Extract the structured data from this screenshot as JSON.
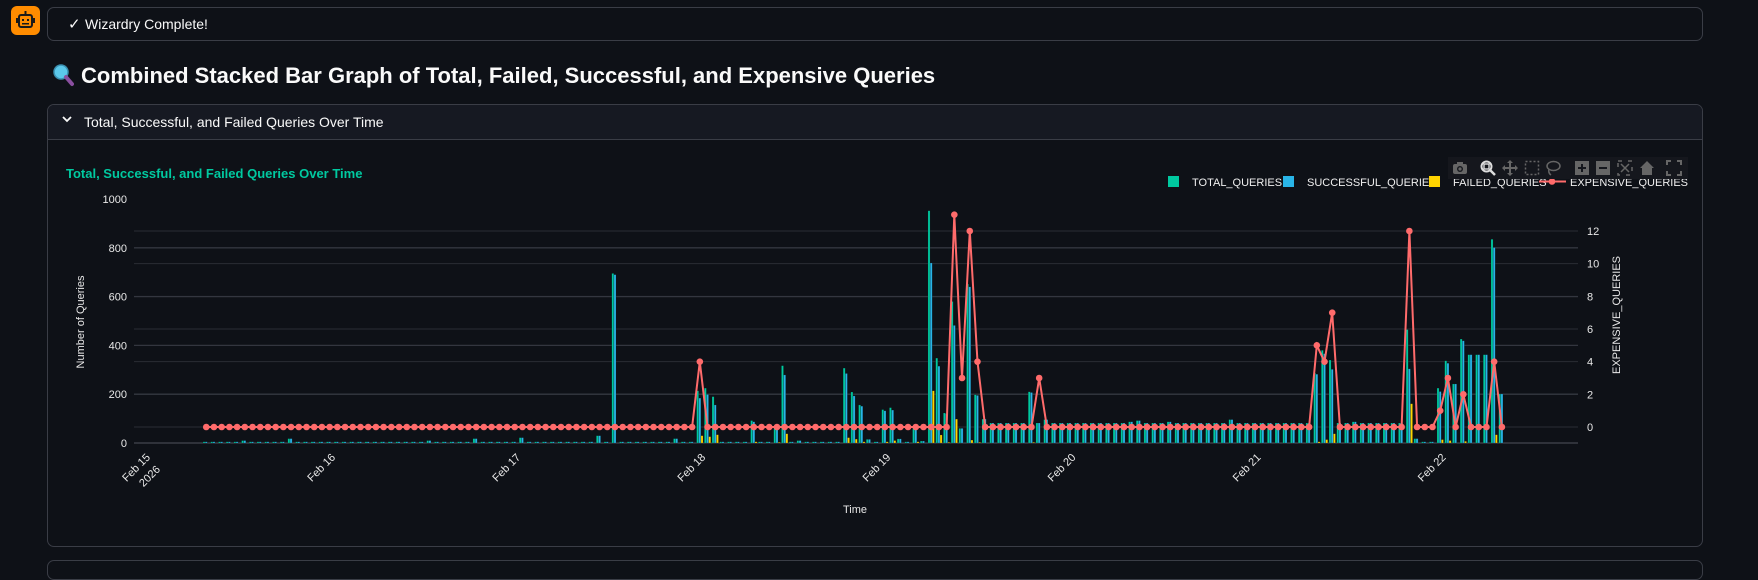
{
  "status": {
    "icon": "check-icon",
    "text": "Wizardry Complete!"
  },
  "avatar": {
    "icon": "robot-icon",
    "color": "#ff8c00"
  },
  "heading": {
    "icon": "magnifier-icon",
    "text": "Combined Stacked Bar Graph of Total, Failed, Successful, and Expensive Queries"
  },
  "expander": {
    "title": "Total, Successful, and Failed Queries Over Time",
    "expanded": true
  },
  "toolbar": [
    "camera-icon",
    "zoom-icon",
    "pan-icon",
    "box-select-icon",
    "lasso-icon",
    "zoom-in-icon",
    "zoom-out-icon",
    "autoscale-icon",
    "home-icon",
    "fullscreen-icon"
  ],
  "chart_data": {
    "type": "bar",
    "title": "Total, Successful, and Failed Queries Over Time",
    "xlabel": "Time",
    "ylabel": "Number of Queries",
    "y2label": "EXPENSIVE_QUERIES",
    "xlim": [
      "2026-02-14 23:38",
      "2026-02-22 18:52"
    ],
    "ylim": [
      0,
      1000
    ],
    "y2lim": [
      -0.98,
      13.96
    ],
    "y_ticks": [
      "0",
      "200",
      "400",
      "600",
      "800",
      "1000"
    ],
    "y2_ticks": [
      "0",
      "2",
      "4",
      "6",
      "8",
      "10",
      "12"
    ],
    "x_ticks": [
      {
        "date": "2026-02-15",
        "label": "Feb 15",
        "sub": "2026"
      },
      {
        "date": "2026-02-16",
        "label": "Feb 16"
      },
      {
        "date": "2026-02-17",
        "label": "Feb 17"
      },
      {
        "date": "2026-02-18",
        "label": "Feb 18"
      },
      {
        "date": "2026-02-19",
        "label": "Feb 19"
      },
      {
        "date": "2026-02-20",
        "label": "Feb 20"
      },
      {
        "date": "2026-02-21",
        "label": "Feb 21"
      },
      {
        "date": "2026-02-22",
        "label": "Feb 22"
      }
    ],
    "grid": true,
    "legend_position": "top-right",
    "colors": {
      "TOTAL_QUERIES": "#00c9a0",
      "SUCCESSFUL_QUERIES": "#29b5e8",
      "FAILED_QUERIES": "#ffd400",
      "EXPENSIVE_QUERIES": "#ff6b6b",
      "title": "#00c9a0"
    },
    "x": [
      "2026-02-15 09:00",
      "2026-02-15 10:00",
      "2026-02-15 11:00",
      "2026-02-15 12:00",
      "2026-02-15 13:00",
      "2026-02-15 14:00",
      "2026-02-15 15:00",
      "2026-02-15 16:00",
      "2026-02-15 17:00",
      "2026-02-15 18:00",
      "2026-02-15 19:00",
      "2026-02-15 20:00",
      "2026-02-15 21:00",
      "2026-02-15 22:00",
      "2026-02-15 23:00",
      "2026-02-16 00:00",
      "2026-02-16 01:00",
      "2026-02-16 02:00",
      "2026-02-16 03:00",
      "2026-02-16 04:00",
      "2026-02-16 05:00",
      "2026-02-16 06:00",
      "2026-02-16 07:00",
      "2026-02-16 08:00",
      "2026-02-16 09:00",
      "2026-02-16 10:00",
      "2026-02-16 11:00",
      "2026-02-16 12:00",
      "2026-02-16 13:00",
      "2026-02-16 14:00",
      "2026-02-16 15:00",
      "2026-02-16 16:00",
      "2026-02-16 17:00",
      "2026-02-16 18:00",
      "2026-02-16 19:00",
      "2026-02-16 20:00",
      "2026-02-16 21:00",
      "2026-02-16 22:00",
      "2026-02-16 23:00",
      "2026-02-17 00:00",
      "2026-02-17 01:00",
      "2026-02-17 02:00",
      "2026-02-17 03:00",
      "2026-02-17 04:00",
      "2026-02-17 05:00",
      "2026-02-17 06:00",
      "2026-02-17 07:00",
      "2026-02-17 08:00",
      "2026-02-17 09:00",
      "2026-02-17 10:00",
      "2026-02-17 11:00",
      "2026-02-17 12:00",
      "2026-02-17 13:00",
      "2026-02-17 14:00",
      "2026-02-17 15:00",
      "2026-02-17 16:00",
      "2026-02-17 17:00",
      "2026-02-17 18:00",
      "2026-02-17 19:00",
      "2026-02-17 20:00",
      "2026-02-17 21:00",
      "2026-02-17 22:00",
      "2026-02-17 23:00",
      "2026-02-18 00:00",
      "2026-02-18 01:00",
      "2026-02-18 02:00",
      "2026-02-18 03:00",
      "2026-02-18 04:00",
      "2026-02-18 05:00",
      "2026-02-18 06:00",
      "2026-02-18 07:00",
      "2026-02-18 08:00",
      "2026-02-18 09:00",
      "2026-02-18 10:00",
      "2026-02-18 11:00",
      "2026-02-18 12:00",
      "2026-02-18 13:00",
      "2026-02-18 14:00",
      "2026-02-18 15:00",
      "2026-02-18 16:00",
      "2026-02-18 17:00",
      "2026-02-18 18:00",
      "2026-02-18 19:00",
      "2026-02-18 20:00",
      "2026-02-18 21:00",
      "2026-02-18 22:00",
      "2026-02-18 23:00",
      "2026-02-19 00:00",
      "2026-02-19 01:00",
      "2026-02-19 02:00",
      "2026-02-19 03:00",
      "2026-02-19 04:00",
      "2026-02-19 05:00",
      "2026-02-19 06:00",
      "2026-02-19 07:00",
      "2026-02-19 08:00",
      "2026-02-19 09:00",
      "2026-02-19 10:00",
      "2026-02-19 11:00",
      "2026-02-19 12:00",
      "2026-02-19 13:00",
      "2026-02-19 14:00",
      "2026-02-19 15:00",
      "2026-02-19 16:00",
      "2026-02-19 17:00",
      "2026-02-19 18:00",
      "2026-02-19 19:00",
      "2026-02-19 20:00",
      "2026-02-19 21:00",
      "2026-02-19 22:00",
      "2026-02-19 23:00",
      "2026-02-20 00:00",
      "2026-02-20 01:00",
      "2026-02-20 02:00",
      "2026-02-20 03:00",
      "2026-02-20 04:00",
      "2026-02-20 05:00",
      "2026-02-20 06:00",
      "2026-02-20 07:00",
      "2026-02-20 08:00",
      "2026-02-20 09:00",
      "2026-02-20 10:00",
      "2026-02-20 11:00",
      "2026-02-20 12:00",
      "2026-02-20 13:00",
      "2026-02-20 14:00",
      "2026-02-20 15:00",
      "2026-02-20 16:00",
      "2026-02-20 17:00",
      "2026-02-20 18:00",
      "2026-02-20 19:00",
      "2026-02-20 20:00",
      "2026-02-20 21:00",
      "2026-02-20 22:00",
      "2026-02-20 23:00",
      "2026-02-21 00:00",
      "2026-02-21 01:00",
      "2026-02-21 02:00",
      "2026-02-21 03:00",
      "2026-02-21 04:00",
      "2026-02-21 05:00",
      "2026-02-21 06:00",
      "2026-02-21 07:00",
      "2026-02-21 08:00",
      "2026-02-21 09:00",
      "2026-02-21 10:00",
      "2026-02-21 11:00",
      "2026-02-21 12:00",
      "2026-02-21 13:00",
      "2026-02-21 14:00",
      "2026-02-21 15:00",
      "2026-02-21 16:00",
      "2026-02-21 17:00",
      "2026-02-21 18:00",
      "2026-02-21 19:00",
      "2026-02-21 20:00",
      "2026-02-21 21:00",
      "2026-02-21 22:00",
      "2026-02-21 23:00",
      "2026-02-22 00:00",
      "2026-02-22 01:00",
      "2026-02-22 02:00",
      "2026-02-22 03:00",
      "2026-02-22 04:00",
      "2026-02-22 05:00",
      "2026-02-22 06:00",
      "2026-02-22 07:00",
      "2026-02-22 08:00",
      "2026-02-22 09:00"
    ],
    "series": [
      {
        "name": "TOTAL_QUERIES",
        "type": "bar",
        "axis": "y",
        "values": [
          5,
          5,
          5,
          5,
          5,
          10,
          5,
          5,
          5,
          5,
          5,
          18,
          5,
          5,
          5,
          5,
          5,
          5,
          5,
          5,
          5,
          5,
          5,
          5,
          5,
          5,
          5,
          5,
          5,
          10,
          5,
          5,
          5,
          5,
          5,
          18,
          5,
          5,
          5,
          5,
          5,
          22,
          5,
          5,
          5,
          5,
          5,
          5,
          5,
          5,
          5,
          30,
          5,
          695,
          5,
          5,
          5,
          5,
          5,
          5,
          5,
          18,
          5,
          5,
          214,
          225,
          190,
          5,
          5,
          5,
          5,
          92,
          5,
          5,
          61,
          317,
          5,
          10,
          5,
          5,
          5,
          5,
          5,
          307,
          209,
          156,
          15,
          5,
          137,
          145,
          17,
          5,
          59,
          8,
          952,
          348,
          123,
          580,
          60,
          652,
          198,
          98,
          82,
          82,
          82,
          82,
          82,
          210,
          82,
          96,
          82,
          82,
          82,
          82,
          82,
          82,
          82,
          82,
          82,
          82,
          87,
          92,
          82,
          82,
          82,
          87,
          82,
          82,
          82,
          82,
          82,
          82,
          82,
          96,
          82,
          82,
          82,
          82,
          82,
          82,
          82,
          82,
          82,
          82,
          287,
          380,
          340,
          82,
          82,
          87,
          82,
          82,
          82,
          82,
          82,
          82,
          465,
          18,
          5,
          5,
          225,
          337,
          242,
          426,
          362,
          362,
          362,
          835,
          201
        ]
      },
      {
        "name": "SUCCESSFUL_QUERIES",
        "type": "bar",
        "axis": "y",
        "values": [
          5,
          5,
          5,
          5,
          5,
          10,
          5,
          5,
          5,
          5,
          5,
          18,
          5,
          5,
          5,
          5,
          5,
          5,
          5,
          5,
          5,
          5,
          5,
          5,
          5,
          5,
          5,
          5,
          5,
          10,
          5,
          5,
          5,
          5,
          5,
          18,
          5,
          5,
          5,
          5,
          5,
          22,
          5,
          5,
          5,
          5,
          5,
          5,
          5,
          5,
          5,
          30,
          5,
          690,
          5,
          5,
          5,
          5,
          5,
          5,
          5,
          18,
          5,
          5,
          184,
          199,
          156,
          5,
          5,
          5,
          5,
          87,
          5,
          5,
          58,
          279,
          5,
          10,
          5,
          5,
          5,
          5,
          5,
          285,
          193,
          151,
          15,
          5,
          132,
          135,
          17,
          5,
          54,
          8,
          738,
          315,
          120,
          482,
          60,
          640,
          195,
          98,
          82,
          82,
          82,
          82,
          82,
          207,
          82,
          96,
          82,
          82,
          82,
          82,
          82,
          82,
          82,
          82,
          82,
          82,
          87,
          92,
          82,
          82,
          82,
          87,
          82,
          82,
          82,
          82,
          82,
          82,
          82,
          96,
          82,
          82,
          82,
          82,
          82,
          82,
          82,
          82,
          82,
          82,
          282,
          366,
          302,
          82,
          82,
          87,
          82,
          82,
          82,
          82,
          82,
          82,
          304,
          18,
          5,
          5,
          211,
          327,
          242,
          419,
          362,
          362,
          362,
          801,
          201
        ]
      },
      {
        "name": "FAILED_QUERIES",
        "type": "bar",
        "axis": "y",
        "values": [
          0,
          0,
          0,
          0,
          0,
          0,
          0,
          0,
          0,
          0,
          0,
          0,
          0,
          0,
          0,
          0,
          0,
          0,
          0,
          0,
          0,
          0,
          0,
          0,
          0,
          0,
          0,
          0,
          0,
          0,
          0,
          0,
          0,
          0,
          0,
          0,
          0,
          0,
          0,
          0,
          0,
          0,
          0,
          0,
          0,
          0,
          0,
          0,
          0,
          0,
          0,
          0,
          0,
          0,
          0,
          0,
          0,
          0,
          0,
          0,
          0,
          0,
          0,
          0,
          30,
          26,
          34,
          0,
          0,
          0,
          0,
          5,
          0,
          0,
          3,
          38,
          0,
          0,
          0,
          0,
          0,
          0,
          0,
          22,
          16,
          5,
          0,
          0,
          5,
          10,
          0,
          0,
          5,
          0,
          214,
          33,
          3,
          98,
          0,
          12,
          3,
          0,
          0,
          0,
          0,
          0,
          0,
          3,
          0,
          0,
          0,
          0,
          0,
          0,
          0,
          0,
          0,
          0,
          0,
          0,
          0,
          0,
          0,
          0,
          0,
          0,
          0,
          0,
          0,
          0,
          0,
          0,
          0,
          0,
          0,
          0,
          0,
          0,
          0,
          0,
          0,
          0,
          0,
          0,
          5,
          14,
          38,
          0,
          0,
          0,
          0,
          0,
          0,
          0,
          0,
          0,
          161,
          0,
          0,
          0,
          14,
          10,
          0,
          7,
          0,
          0,
          0,
          34,
          0
        ]
      },
      {
        "name": "EXPENSIVE_QUERIES",
        "type": "line+markers",
        "axis": "y2",
        "values": [
          0,
          0,
          0,
          0,
          0,
          0,
          0,
          0,
          0,
          0,
          0,
          0,
          0,
          0,
          0,
          0,
          0,
          0,
          0,
          0,
          0,
          0,
          0,
          0,
          0,
          0,
          0,
          0,
          0,
          0,
          0,
          0,
          0,
          0,
          0,
          0,
          0,
          0,
          0,
          0,
          0,
          0,
          0,
          0,
          0,
          0,
          0,
          0,
          0,
          0,
          0,
          0,
          0,
          0,
          0,
          0,
          0,
          0,
          0,
          0,
          0,
          0,
          0,
          0,
          4,
          0,
          0,
          0,
          0,
          0,
          0,
          0,
          0,
          0,
          0,
          0,
          0,
          0,
          0,
          0,
          0,
          0,
          0,
          0,
          0,
          0,
          0,
          0,
          0,
          0,
          0,
          0,
          0,
          0,
          0,
          0,
          0,
          13,
          3,
          12,
          4,
          0,
          0,
          0,
          0,
          0,
          0,
          0,
          3,
          0,
          0,
          0,
          0,
          0,
          0,
          0,
          0,
          0,
          0,
          0,
          0,
          0,
          0,
          0,
          0,
          0,
          0,
          0,
          0,
          0,
          0,
          0,
          0,
          0,
          0,
          0,
          0,
          0,
          0,
          0,
          0,
          0,
          0,
          0,
          5,
          4,
          7,
          0,
          0,
          0,
          0,
          0,
          0,
          0,
          0,
          0,
          12,
          0,
          0,
          0,
          1,
          3,
          0,
          2,
          0,
          0,
          0,
          4,
          0
        ]
      }
    ]
  }
}
